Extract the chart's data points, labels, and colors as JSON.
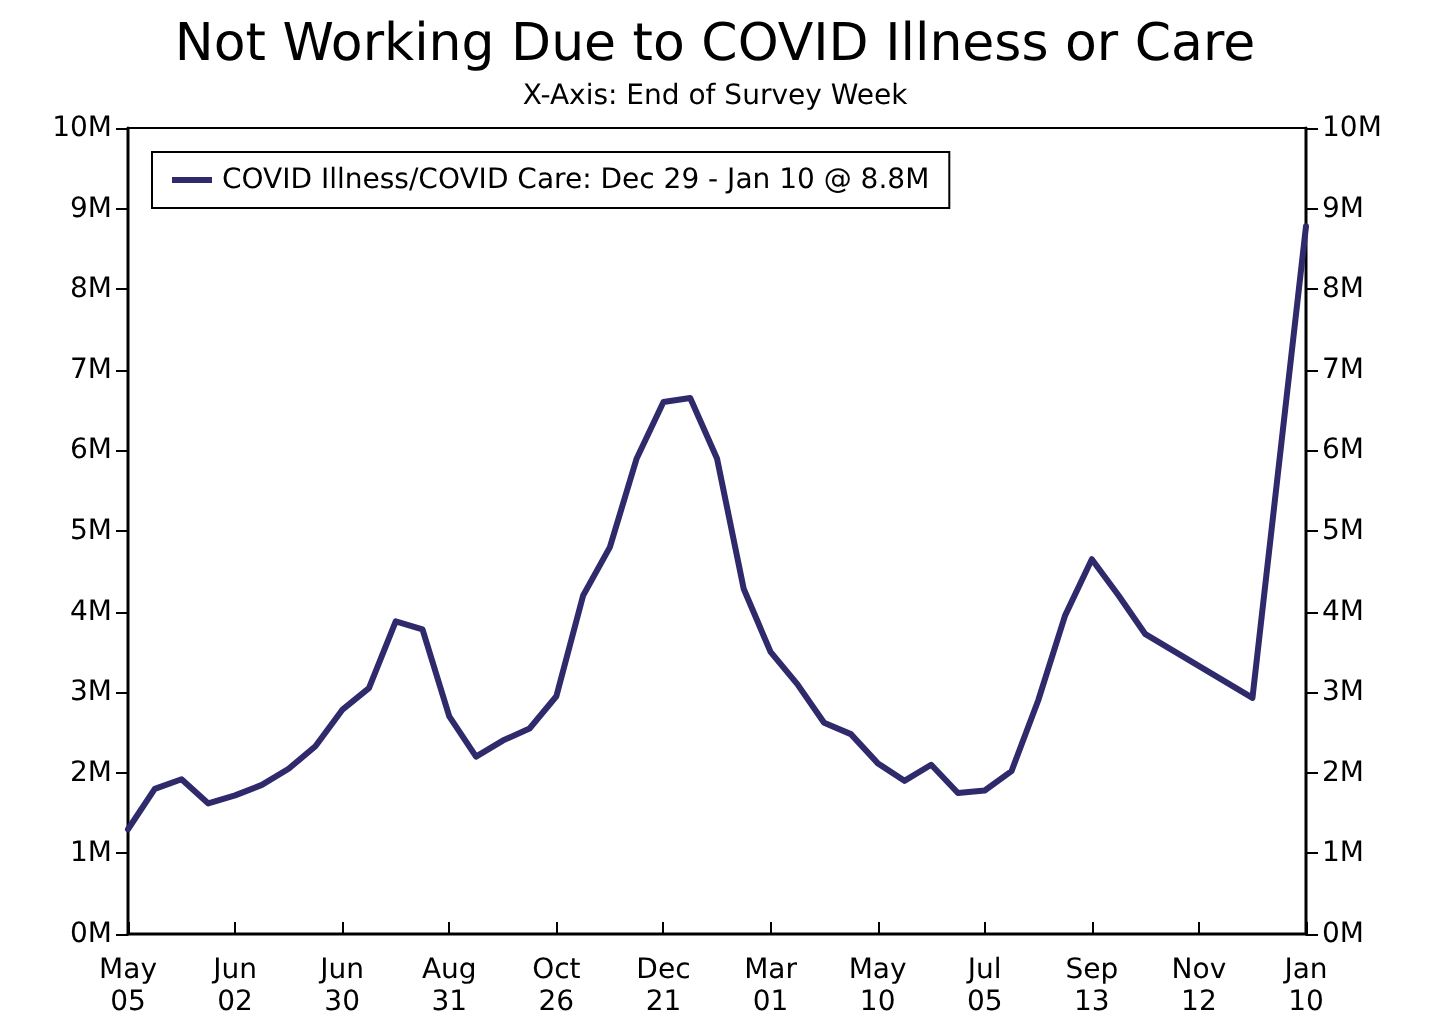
{
  "chart_data": {
    "type": "line",
    "title": "Not Working Due to COVID Illness or Care",
    "subtitle": "X-Axis: End of Survey Week",
    "categories": [
      "May 05",
      null,
      null,
      null,
      "Jun 02",
      null,
      null,
      null,
      "Jun 30",
      null,
      null,
      null,
      "Aug 31",
      null,
      null,
      null,
      "Oct 26",
      null,
      null,
      null,
      "Dec 21",
      null,
      null,
      null,
      "Mar 01",
      null,
      null,
      null,
      "May 10",
      null,
      null,
      null,
      "Jul 05",
      null,
      null,
      null,
      "Sep 13",
      null,
      null,
      null,
      "Nov 12",
      null,
      null,
      null,
      "Jan 10"
    ],
    "series": [
      {
        "name": "COVID Illness/COVID Care: Dec 29 - Jan 10 @ 8.8M",
        "color": "#2e2a6b",
        "values": [
          1.3,
          1.8,
          1.92,
          1.62,
          1.72,
          1.85,
          2.05,
          2.33,
          2.78,
          3.05,
          3.88,
          3.78,
          2.7,
          2.2,
          2.4,
          2.55,
          2.95,
          4.2,
          4.8,
          5.9,
          6.6,
          6.65,
          5.9,
          4.28,
          3.5,
          3.1,
          2.62,
          2.48,
          2.12,
          1.9,
          2.1,
          1.75,
          1.78,
          2.02,
          2.9,
          3.95,
          4.65,
          4.2,
          3.72,
          null,
          null,
          null,
          2.93,
          null,
          8.78
        ]
      }
    ],
    "ylim": [
      0,
      10
    ],
    "yticks": [
      {
        "value": 0,
        "label": "0M"
      },
      {
        "value": 1,
        "label": "1M"
      },
      {
        "value": 2,
        "label": "2M"
      },
      {
        "value": 3,
        "label": "3M"
      },
      {
        "value": 4,
        "label": "4M"
      },
      {
        "value": 5,
        "label": "5M"
      },
      {
        "value": 6,
        "label": "6M"
      },
      {
        "value": 7,
        "label": "7M"
      },
      {
        "value": 8,
        "label": "8M"
      },
      {
        "value": 9,
        "label": "9M"
      },
      {
        "value": 10,
        "label": "10M"
      }
    ],
    "y2lim": [
      0,
      10
    ],
    "y2ticks": [
      {
        "value": 0,
        "label": "0M"
      },
      {
        "value": 1,
        "label": "1M"
      },
      {
        "value": 2,
        "label": "2M"
      },
      {
        "value": 3,
        "label": "3M"
      },
      {
        "value": 4,
        "label": "4M"
      },
      {
        "value": 5,
        "label": "5M"
      },
      {
        "value": 6,
        "label": "6M"
      },
      {
        "value": 7,
        "label": "7M"
      },
      {
        "value": 8,
        "label": "8M"
      },
      {
        "value": 9,
        "label": "9M"
      },
      {
        "value": 10,
        "label": "10M"
      }
    ],
    "grid": false,
    "legend": "top left",
    "marker": "none",
    "line_style": "solid"
  }
}
